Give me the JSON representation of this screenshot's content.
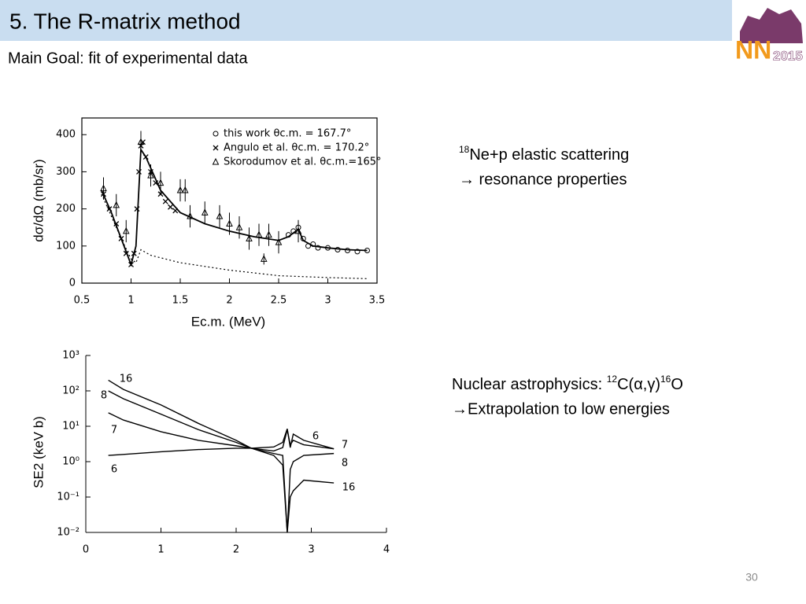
{
  "header": {
    "title": "5. The R-matrix method",
    "subtitle": "Main Goal: fit of experimental data"
  },
  "logo": {
    "text": "NN",
    "year": "2015"
  },
  "notes": [
    {
      "parts": [
        "18",
        "Ne+p elastic scattering"
      ],
      "line2": "→ resonance properties"
    },
    {
      "parts": [
        "Nuclear astrophysics: ",
        "12",
        "C(α,γ)",
        "16",
        "O"
      ],
      "line2": "→Extrapolation to low energies"
    }
  ],
  "page_number": "30",
  "chart_data": [
    {
      "type": "scatter",
      "xlabel": "Ec.m. (MeV)",
      "ylabel": "dσ/dΩ (mb/sr)",
      "xlim": [
        0.5,
        3.5
      ],
      "ylim": [
        0,
        445
      ],
      "xticks": [
        0.5,
        1,
        1.5,
        2,
        2.5,
        3,
        3.5
      ],
      "yticks": [
        0,
        100,
        200,
        300,
        400
      ],
      "box": true,
      "legend": "upper right",
      "series": [
        {
          "name": "this work θc.m. = 167.7°",
          "marker": "circle",
          "color": "#000000",
          "x": [
            2.6,
            2.65,
            2.7,
            2.75,
            2.8,
            2.85,
            2.9,
            3.0,
            3.1,
            3.2,
            3.3,
            3.4
          ],
          "values": [
            130,
            140,
            150,
            120,
            100,
            105,
            95,
            95,
            90,
            88,
            85,
            88
          ]
        },
        {
          "name": "Angulo et al. θc.m. = 170.2°",
          "marker": "cross",
          "color": "#000000",
          "x": [
            0.72,
            0.78,
            0.85,
            0.9,
            0.95,
            1.0,
            1.03,
            1.06,
            1.08,
            1.1,
            1.12,
            1.15,
            1.2,
            1.25,
            1.3,
            1.35,
            1.4,
            1.45
          ],
          "values": [
            240,
            200,
            160,
            120,
            80,
            50,
            80,
            200,
            300,
            370,
            380,
            340,
            300,
            270,
            240,
            220,
            205,
            195
          ]
        },
        {
          "name": "Skorodumov et al. θc.m.=165°",
          "marker": "triangle",
          "color": "#000000",
          "x": [
            0.72,
            0.85,
            0.95,
            1.1,
            1.2,
            1.3,
            1.5,
            1.55,
            1.6,
            1.75,
            1.9,
            2.0,
            2.1,
            2.2,
            2.3,
            2.35,
            2.4,
            2.5,
            2.7
          ],
          "values": [
            255,
            210,
            140,
            380,
            290,
            270,
            250,
            250,
            180,
            190,
            180,
            160,
            150,
            120,
            130,
            65,
            130,
            110,
            140
          ],
          "errors": [
            30,
            30,
            30,
            30,
            30,
            30,
            30,
            30,
            30,
            30,
            30,
            30,
            30,
            30,
            30,
            15,
            30,
            30,
            30
          ]
        },
        {
          "marker": "none",
          "style": "solid",
          "color": "#000000",
          "x": [
            0.7,
            0.8,
            0.9,
            1.0,
            1.05,
            1.1,
            1.15,
            1.3,
            1.5,
            1.75,
            2.0,
            2.25,
            2.5,
            2.6,
            2.7,
            2.75,
            2.85,
            3.0,
            3.2,
            3.4
          ],
          "values": [
            250,
            190,
            120,
            50,
            100,
            360,
            340,
            250,
            190,
            160,
            140,
            125,
            115,
            125,
            145,
            115,
            100,
            95,
            90,
            88
          ]
        },
        {
          "marker": "none",
          "style": "dotted",
          "color": "#000000",
          "x": [
            0.7,
            0.8,
            0.9,
            1.0,
            1.05,
            1.1,
            1.2,
            1.5,
            2.0,
            2.5,
            3.0,
            3.4
          ],
          "values": [
            240,
            180,
            120,
            65,
            55,
            90,
            75,
            55,
            35,
            20,
            15,
            12
          ]
        }
      ]
    },
    {
      "type": "line",
      "ylabel": "SE2 (keV b)",
      "log_y": true,
      "box": false,
      "xlim": [
        0,
        4
      ],
      "ylim": [
        0.01,
        1000
      ],
      "xticks": [
        0,
        1,
        2,
        3,
        4
      ],
      "yticks": [
        {
          "value": 1000,
          "label": "10³"
        },
        {
          "value": 100,
          "label": "10²"
        },
        {
          "value": 10,
          "label": "10¹"
        },
        {
          "value": 1,
          "label": "10⁰"
        },
        {
          "value": 0.1,
          "label": "10⁻¹"
        },
        {
          "value": 0.01,
          "label": "10⁻²"
        }
      ],
      "x": [
        0.3,
        0.5,
        1.0,
        1.5,
        2.0,
        2.2,
        2.5,
        2.62,
        2.68,
        2.72,
        2.76,
        2.9,
        3.3
      ],
      "series": [
        {
          "name": "16",
          "color": "#000000",
          "values": [
            200,
            110,
            40,
            12,
            4,
            2.4,
            1.5,
            0.8,
            0.01,
            0.1,
            0.15,
            0.3,
            0.25
          ]
        },
        {
          "name": "8",
          "color": "#000000",
          "values": [
            100,
            60,
            22,
            8,
            3.5,
            2.4,
            1.7,
            1.5,
            0.01,
            0.6,
            1.0,
            1.5,
            1.7
          ]
        },
        {
          "name": "7",
          "color": "#000000",
          "values": [
            24,
            15,
            7,
            4,
            2.8,
            2.4,
            2.0,
            2.5,
            8,
            3,
            4,
            3,
            2.3
          ]
        },
        {
          "name": "6",
          "color": "#000000",
          "values": [
            1.5,
            1.6,
            1.9,
            2.2,
            2.4,
            2.4,
            2.6,
            3.5,
            8.5,
            2.5,
            6,
            4,
            2.3
          ]
        }
      ]
    }
  ]
}
